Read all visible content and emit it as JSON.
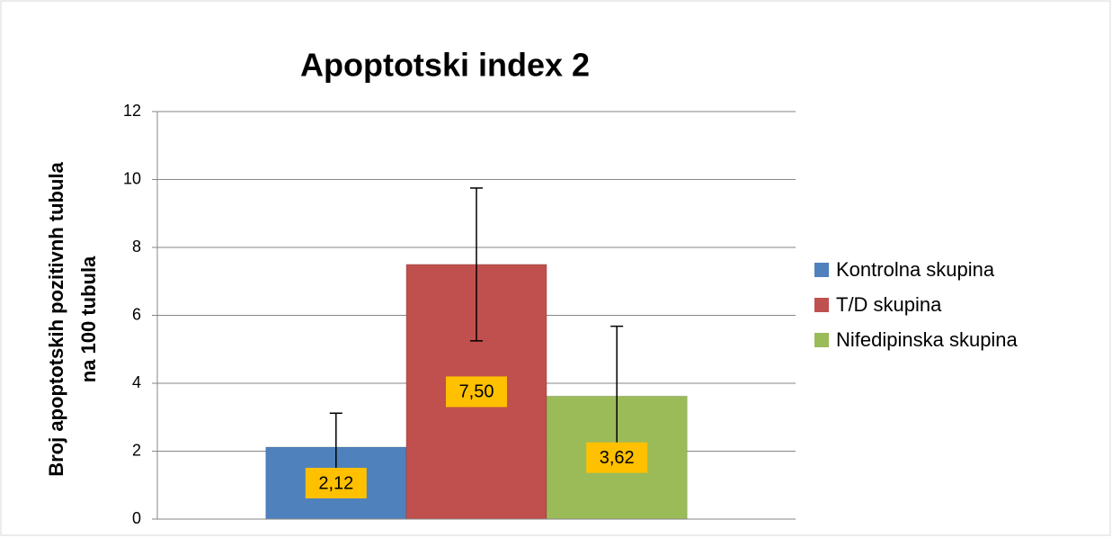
{
  "chart_data": {
    "type": "bar",
    "title": "Apoptotski index  2",
    "y_label": [
      "Broj apoptotskih pozitivnh tubula",
      "na 100 tubula"
    ],
    "categories": [
      null
    ],
    "series": [
      {
        "name": "Kontrolna skupina",
        "color": "#4f81bd",
        "values": [
          2.12
        ],
        "value_labels": [
          "2,12"
        ],
        "errors": [
          1.0
        ]
      },
      {
        "name": "T/D skupina",
        "color": "#c0504d",
        "values": [
          7.5
        ],
        "value_labels": [
          "7,50"
        ],
        "errors": [
          2.25
        ]
      },
      {
        "name": "Nifedipinska skupina",
        "color": "#9bbb59",
        "values": [
          3.62
        ],
        "value_labels": [
          "3,62"
        ],
        "errors": [
          2.06
        ]
      }
    ],
    "ylim": [
      0,
      12
    ],
    "yticks": [
      0,
      2,
      4,
      6,
      8,
      10,
      12
    ],
    "grid": true,
    "legend": "right",
    "value_label_color": "#ffc000"
  }
}
